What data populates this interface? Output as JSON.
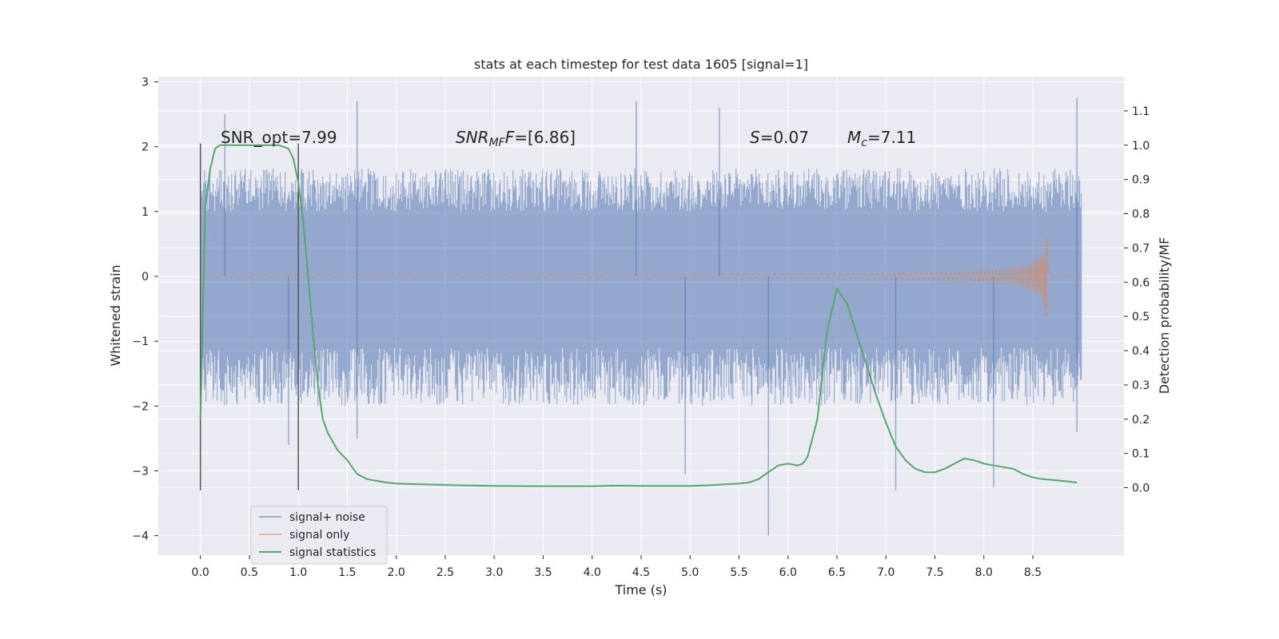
{
  "chart_data": {
    "type": "line",
    "title": "stats at each timestep for test data 1605 [signal=1]",
    "xlabel": "Time (s)",
    "ylabel_left": "Whitened strain",
    "ylabel_right": "Detection probability/MF",
    "xlim": [
      -0.43,
      9.43
    ],
    "ylim_left": [
      -4.3,
      3.08
    ],
    "ylim_right": [
      -0.197,
      1.2
    ],
    "x_ticks": [
      "0.0",
      "0.5",
      "1.0",
      "1.5",
      "2.0",
      "2.5",
      "3.0",
      "3.5",
      "4.0",
      "4.5",
      "5.0",
      "5.5",
      "6.0",
      "6.5",
      "7.0",
      "7.5",
      "8.0",
      "8.5"
    ],
    "y_ticks_left": [
      "3",
      "2",
      "1",
      "0",
      "−1",
      "−2",
      "−3",
      "−4"
    ],
    "y_ticks_right": [
      "1.1",
      "1.0",
      "0.9",
      "0.8",
      "0.7",
      "0.6",
      "0.5",
      "0.4",
      "0.3",
      "0.2",
      "0.1",
      "0.0"
    ],
    "grid": true,
    "legend_position": "lower-left",
    "annotations": {
      "snr_opt": "SNR_opt=7.99",
      "snr_mf_main": "SNR",
      "snr_mf_sub": "MF",
      "snr_mf_value": "=[6.86]",
      "s_main": "S",
      "s_value": "=0.07",
      "mc_main": "M",
      "mc_sub": "c",
      "mc_value": "=7.11"
    },
    "vertical_markers": {
      "x": [
        0.0,
        1.0
      ],
      "y_range_left": [
        -3.3,
        2.05
      ]
    },
    "series": [
      {
        "name": "signal+ noise",
        "color": "#4c72b0",
        "kind": "noise_band",
        "x_range": [
          0.0,
          9.0
        ],
        "core_range": [
          -1.05,
          1.0
        ],
        "typical_extremes": [
          -2.0,
          1.7
        ],
        "outliers": [
          {
            "x": 0.25,
            "y": 2.5
          },
          {
            "x": 1.6,
            "y": 2.7
          },
          {
            "x": 4.45,
            "y": 2.7
          },
          {
            "x": 5.3,
            "y": 2.6
          },
          {
            "x": 8.95,
            "y": 2.75
          },
          {
            "x": 0.9,
            "y": -2.6
          },
          {
            "x": 1.6,
            "y": -2.5
          },
          {
            "x": 4.95,
            "y": -3.05
          },
          {
            "x": 5.8,
            "y": -4.0
          },
          {
            "x": 7.1,
            "y": -3.3
          },
          {
            "x": 8.1,
            "y": -3.25
          },
          {
            "x": 8.95,
            "y": -2.4
          }
        ]
      },
      {
        "name": "signal only",
        "color": "#dd8452",
        "kind": "chirp",
        "x_range": [
          0.0,
          9.0
        ],
        "merger_time": 8.65,
        "peak_amplitude": 0.75
      },
      {
        "name": "signal statistics",
        "color": "#55a868",
        "kind": "line",
        "axis": "right",
        "x": [
          0.0,
          0.05,
          0.1,
          0.15,
          0.2,
          0.3,
          0.4,
          0.5,
          0.6,
          0.7,
          0.8,
          0.9,
          0.95,
          1.0,
          1.05,
          1.1,
          1.15,
          1.2,
          1.25,
          1.3,
          1.4,
          1.5,
          1.6,
          1.7,
          1.8,
          1.9,
          2.0,
          2.5,
          3.0,
          3.5,
          4.0,
          4.2,
          4.5,
          5.0,
          5.2,
          5.5,
          5.6,
          5.7,
          5.8,
          5.9,
          6.0,
          6.1,
          6.15,
          6.2,
          6.3,
          6.4,
          6.5,
          6.6,
          6.7,
          6.8,
          6.9,
          7.0,
          7.1,
          7.2,
          7.3,
          7.4,
          7.5,
          7.6,
          7.7,
          7.8,
          7.9,
          8.0,
          8.1,
          8.2,
          8.3,
          8.4,
          8.5,
          8.6,
          8.8,
          8.95
        ],
        "y": [
          0.2,
          0.82,
          0.93,
          0.99,
          1.0,
          1.0,
          1.0,
          1.0,
          1.0,
          1.0,
          1.0,
          0.99,
          0.96,
          0.89,
          0.78,
          0.62,
          0.45,
          0.3,
          0.2,
          0.16,
          0.11,
          0.08,
          0.04,
          0.025,
          0.02,
          0.015,
          0.012,
          0.008,
          0.005,
          0.004,
          0.004,
          0.006,
          0.005,
          0.005,
          0.007,
          0.012,
          0.015,
          0.025,
          0.045,
          0.065,
          0.07,
          0.065,
          0.07,
          0.09,
          0.2,
          0.46,
          0.58,
          0.54,
          0.45,
          0.36,
          0.27,
          0.19,
          0.12,
          0.08,
          0.055,
          0.045,
          0.045,
          0.055,
          0.07,
          0.085,
          0.08,
          0.07,
          0.065,
          0.06,
          0.055,
          0.04,
          0.03,
          0.025,
          0.02,
          0.015
        ]
      }
    ]
  }
}
